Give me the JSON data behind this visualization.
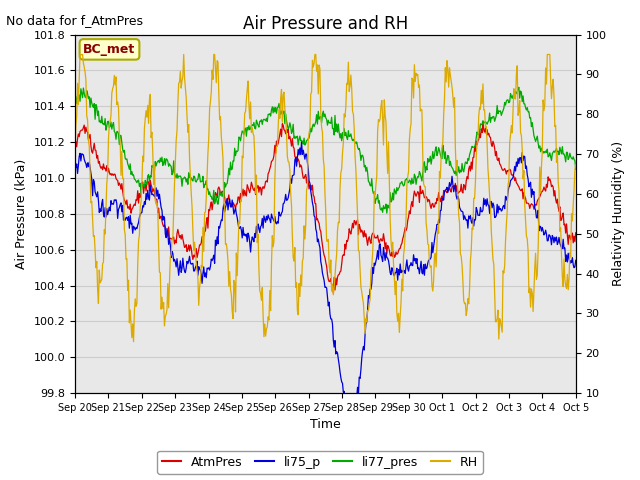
{
  "title": "Air Pressure and RH",
  "subtitle": "No data for f_AtmPres",
  "xlabel": "Time",
  "ylabel_left": "Air Pressure (kPa)",
  "ylabel_right": "Relativity Humidity (%)",
  "ylim_left": [
    99.8,
    101.8
  ],
  "ylim_right": [
    10,
    100
  ],
  "xtick_labels": [
    "Sep 20",
    "Sep 21",
    "Sep 22",
    "Sep 23",
    "Sep 24",
    "Sep 25",
    "Sep 26",
    "Sep 27",
    "Sep 28",
    "Sep 29",
    "Sep 30",
    "Oct 1",
    "Oct 2",
    "Oct 3",
    "Oct 4",
    "Oct 5"
  ],
  "legend_labels": [
    "AtmPres",
    "li75_p",
    "li77_pres",
    "RH"
  ],
  "line_colors": {
    "AtmPres": "#dd0000",
    "li75_p": "#0000dd",
    "li77_pres": "#00aa00",
    "RH": "#ddaa00"
  },
  "annotation_text": "BC_met",
  "annotation_facecolor": "#ffffcc",
  "annotation_edgecolor": "#aaaa00",
  "annotation_textcolor": "#880000",
  "background_color": "#ffffff",
  "plot_bg_color": "#e8e8e8",
  "grid_color": "#cccccc",
  "title_fontsize": 12,
  "subtitle_fontsize": 9,
  "axis_fontsize": 9,
  "tick_fontsize": 8,
  "legend_fontsize": 9,
  "seed_atm": 10,
  "seed_li75": 20,
  "seed_li77": 30,
  "seed_rh": 40,
  "n_points": 600
}
